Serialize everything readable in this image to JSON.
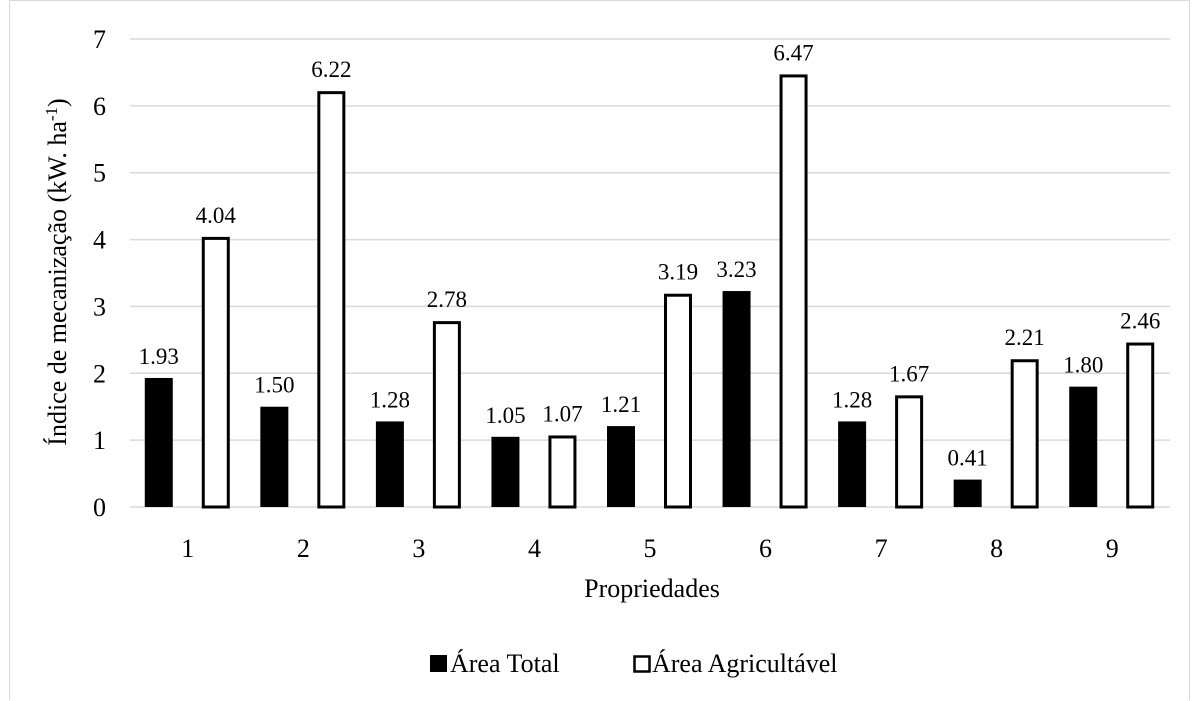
{
  "chart_data": {
    "type": "bar",
    "categories": [
      "1",
      "2",
      "3",
      "4",
      "5",
      "6",
      "7",
      "8",
      "9"
    ],
    "series": [
      {
        "name": "Área Total",
        "values": [
          1.93,
          1.5,
          1.28,
          1.05,
          1.21,
          3.23,
          1.28,
          0.41,
          1.8
        ],
        "labels": [
          "1.93",
          "1.50",
          "1.28",
          "1.05",
          "1.21",
          "3.23",
          "1.28",
          "0.41",
          "1.80"
        ],
        "color": "#000000",
        "fill": "solid"
      },
      {
        "name": "Área Agricultável",
        "values": [
          4.04,
          6.22,
          2.78,
          1.07,
          3.19,
          6.47,
          1.67,
          2.21,
          2.46
        ],
        "labels": [
          "4.04",
          "6.22",
          "2.78",
          "1.07",
          "3.19",
          "6.47",
          "1.67",
          "2.21",
          "2.46"
        ],
        "color": "#000000",
        "fill": "outline"
      }
    ],
    "yticks": [
      "0",
      "1",
      "2",
      "3",
      "4",
      "5",
      "6",
      "7"
    ],
    "xlabel": "Propriedades",
    "ylabel_main": "Índice de mecanização (kW. ha",
    "ylabel_sup": "-1",
    "ylabel_close": ")",
    "ylim": [
      0,
      7
    ],
    "grid": true,
    "legend_position": "bottom-center"
  }
}
